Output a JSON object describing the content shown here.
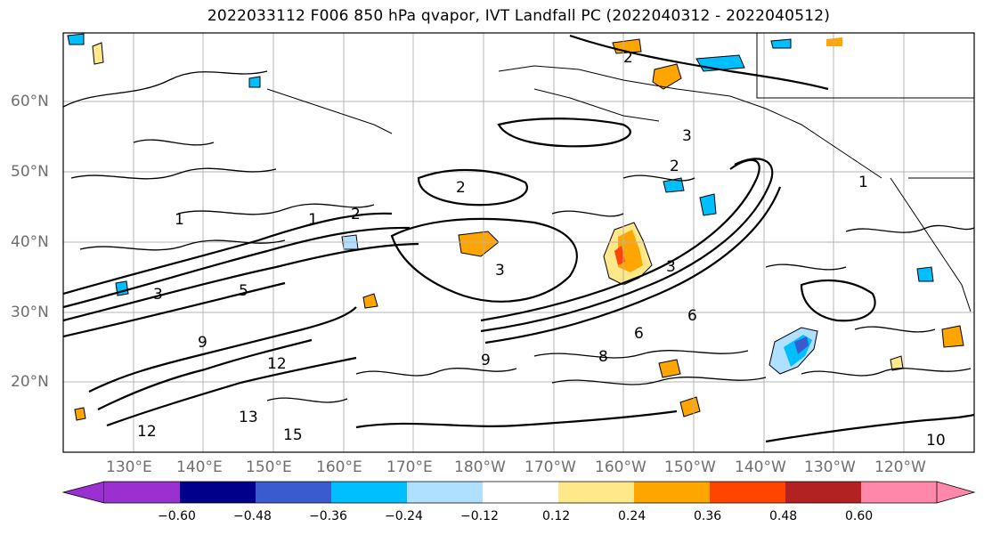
{
  "title": "2022033112 F006 850 hPa qvapor, IVT Landfall PC (2022040312 - 2022040512)",
  "map": {
    "lat_labels": [
      "60°N",
      "50°N",
      "40°N",
      "30°N",
      "20°N"
    ],
    "lon_labels": [
      "130°E",
      "140°E",
      "150°E",
      "160°E",
      "170°E",
      "180°W",
      "170°W",
      "160°W",
      "150°W",
      "140°W",
      "130°W",
      "120°W"
    ],
    "contour_labels": [
      "2",
      "3",
      "1",
      "1",
      "2",
      "5",
      "3",
      "3",
      "6",
      "9",
      "12",
      "12",
      "13",
      "15",
      "6",
      "9",
      "10",
      "8",
      "2",
      "3",
      "1",
      "2"
    ]
  },
  "colorbar": {
    "ticks": [
      "−0.60",
      "−0.48",
      "−0.36",
      "−0.24",
      "−0.12",
      "0.12",
      "0.24",
      "0.36",
      "0.48",
      "0.60"
    ],
    "colors": [
      "#9b30d0",
      "#00008b",
      "#3a5bd0",
      "#00bfff",
      "#b0e0ff",
      "#ffffff",
      "#ffe88a",
      "#ffa500",
      "#ff4500",
      "#b22222",
      "#ff88aa"
    ]
  }
}
